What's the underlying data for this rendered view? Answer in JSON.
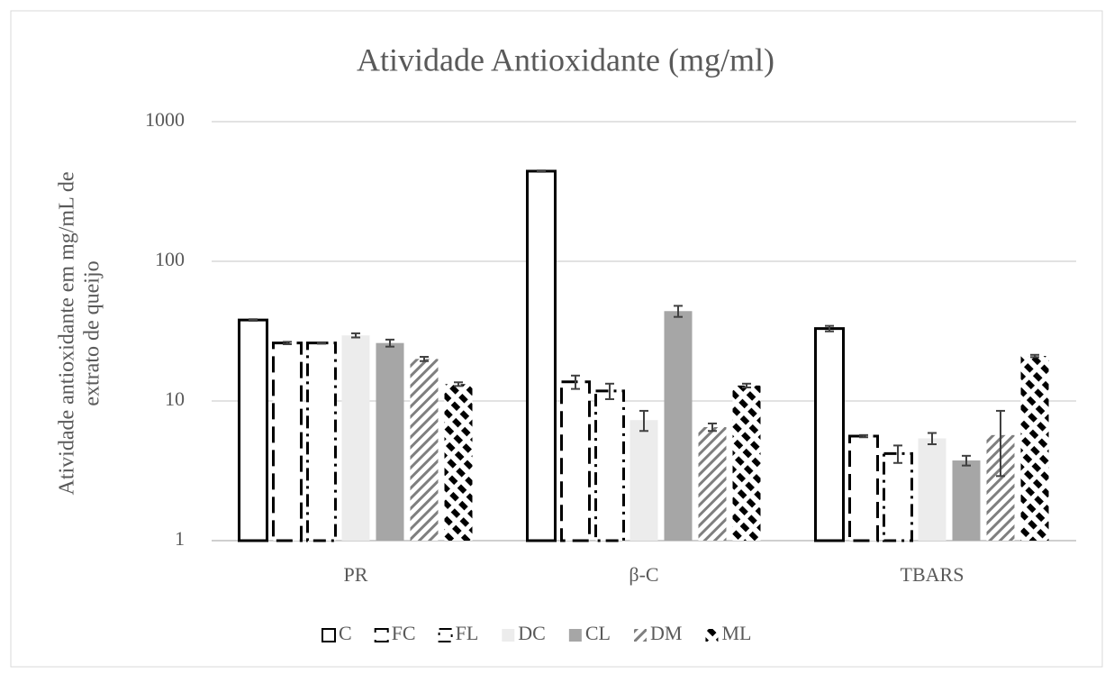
{
  "chart_data": {
    "type": "bar",
    "title": "Atividade Antioxidante (mg/ml)",
    "y_label": [
      "Atividade antioxidante em mg/mL de",
      "extrato de queijo"
    ],
    "categories": [
      "PR",
      "β-C",
      "TBARS"
    ],
    "log_scale": true,
    "grid": true,
    "legend": "bottom",
    "ylim": [
      1,
      1000
    ],
    "yticks": [
      1,
      10,
      100,
      1000
    ],
    "series": [
      {
        "name": "C",
        "color": "#ffffff",
        "values": [
          38,
          442,
          33
        ],
        "errors": [
          0.5,
          5,
          1.5
        ]
      },
      {
        "name": "FC",
        "color": "#ffffff",
        "values": [
          26,
          13.7,
          5.6
        ],
        "errors": [
          0.5,
          1.5,
          0.1
        ]
      },
      {
        "name": "FL",
        "color": "#ffffff",
        "values": [
          26,
          11.8,
          4.2
        ],
        "errors": [
          0.3,
          1.5,
          0.6
        ]
      },
      {
        "name": "DC",
        "color": "#ececec",
        "values": [
          29.5,
          7.3,
          5.4
        ],
        "errors": [
          1,
          1.2,
          0.5
        ]
      },
      {
        "name": "CL",
        "color": "#a6a6a6",
        "values": [
          26,
          44,
          3.75
        ],
        "errors": [
          1.5,
          4,
          0.3
        ]
      },
      {
        "name": "DM",
        "color": "#7f7f7f",
        "values": [
          20,
          6.5,
          5.7
        ],
        "errors": [
          0.7,
          0.4,
          2.8
        ]
      },
      {
        "name": "ML",
        "color": "#000000",
        "values": [
          13.2,
          12.9,
          21
        ],
        "errors": [
          0.4,
          0.4,
          0.4
        ]
      }
    ]
  }
}
